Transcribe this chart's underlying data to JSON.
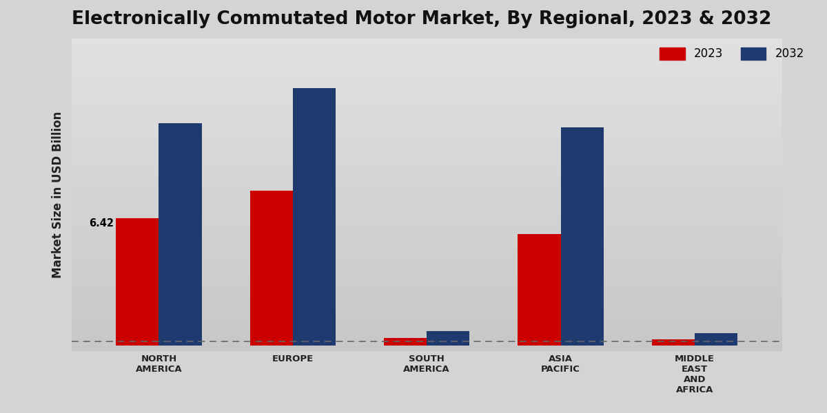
{
  "title": "Electronically Commutated Motor Market, By Regional, 2023 & 2032",
  "ylabel": "Market Size in USD Billion",
  "categories": [
    "NORTH\nAMERICA",
    "EUROPE",
    "SOUTH\nAMERICA",
    "ASIA\nPACIFIC",
    "MIDDLE\nEAST\nAND\nAFRICA"
  ],
  "values_2023": [
    6.42,
    7.8,
    0.38,
    5.6,
    0.28
  ],
  "values_2032": [
    11.2,
    13.0,
    0.72,
    11.0,
    0.62
  ],
  "color_2023": "#cc0000",
  "color_2032": "#1e3a6e",
  "annotation_label": "6.42",
  "annotation_index": 0,
  "bar_width": 0.32,
  "background_color_top": "#d9d9d9",
  "background_color_bottom": "#c0c0c0",
  "dashed_line_y": 0.18,
  "ylim_min": -0.3,
  "ylim_max": 15.5,
  "legend_labels": [
    "2023",
    "2032"
  ],
  "title_fontsize": 19,
  "axis_label_fontsize": 12,
  "tick_fontsize": 9.5,
  "legend_fontsize": 12
}
